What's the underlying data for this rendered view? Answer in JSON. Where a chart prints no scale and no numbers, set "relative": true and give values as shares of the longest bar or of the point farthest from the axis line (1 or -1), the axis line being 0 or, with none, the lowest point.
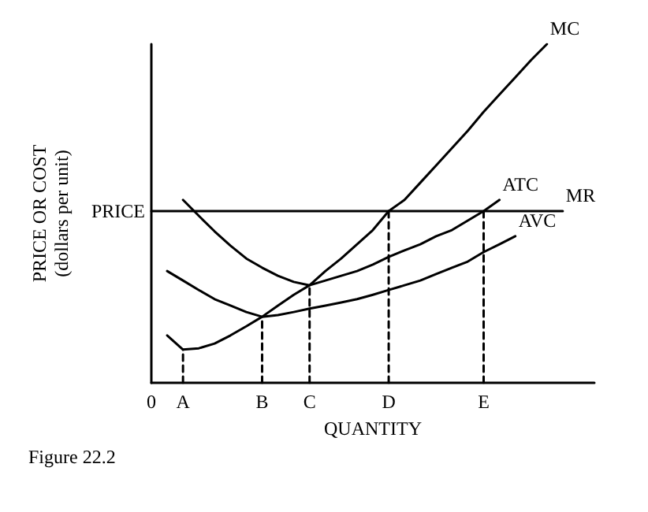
{
  "chart_data": {
    "type": "line",
    "relative": true,
    "xlabel": "QUANTITY",
    "ylabel": "PRICE OR COST\n(dollars per unit)",
    "categories": [
      "0",
      null,
      "A",
      null,
      null,
      null,
      null,
      "B",
      null,
      null,
      "C",
      null,
      null,
      null,
      null,
      "D",
      null,
      null,
      null,
      null,
      null,
      "E",
      null,
      null,
      null,
      null,
      null,
      null,
      null
    ],
    "marker": "none",
    "legend": false,
    "grid": false,
    "annotations": [
      "PRICE",
      "Figure 22.2"
    ],
    "series": [
      {
        "name": "MC",
        "color": "#000000",
        "values": [
          null,
          0.14,
          0.098,
          0.102,
          0.116,
          0.14,
          0.167,
          0.195,
          0.228,
          0.26,
          0.288,
          0.33,
          0.367,
          0.409,
          0.451,
          0.507,
          0.54,
          0.591,
          0.642,
          0.693,
          0.744,
          0.8,
          0.851,
          0.902,
          0.953,
          1,
          null,
          null,
          null
        ]
      },
      {
        "name": "ATC",
        "color": "#000000",
        "values": [
          null,
          null,
          0.54,
          0.493,
          0.447,
          0.405,
          0.367,
          0.34,
          0.316,
          0.298,
          0.288,
          0.302,
          0.316,
          0.33,
          0.349,
          0.372,
          0.391,
          0.409,
          0.433,
          0.451,
          0.479,
          0.507,
          0.54,
          null,
          null,
          null,
          null,
          null,
          null
        ]
      },
      {
        "name": "AVC",
        "color": "#000000",
        "values": [
          null,
          0.33,
          0.302,
          0.274,
          0.247,
          0.228,
          0.209,
          0.195,
          0.2,
          0.209,
          0.219,
          0.228,
          0.237,
          0.247,
          0.26,
          0.274,
          0.288,
          0.302,
          0.321,
          0.34,
          0.358,
          0.386,
          0.409,
          0.433,
          null,
          null,
          null,
          null,
          null
        ]
      },
      {
        "name": "MR",
        "color": "#000000",
        "values": [
          0.507,
          null,
          null,
          null,
          null,
          null,
          null,
          null,
          null,
          null,
          null,
          null,
          null,
          null,
          null,
          null,
          null,
          null,
          null,
          null,
          null,
          null,
          null,
          null,
          null,
          null,
          0.507,
          null,
          null
        ]
      },
      {
        "color": "#000000",
        "line_style": "dashed",
        "x": [
          "A",
          "A"
        ],
        "values": [
          0,
          0.098
        ]
      },
      {
        "color": "#000000",
        "line_style": "dashed",
        "x": [
          "B",
          "B"
        ],
        "values": [
          0,
          0.195
        ]
      },
      {
        "color": "#000000",
        "line_style": "dashed",
        "x": [
          "C",
          "C"
        ],
        "values": [
          0,
          0.288
        ]
      },
      {
        "color": "#000000",
        "line_style": "dashed",
        "x": [
          "D",
          "D"
        ],
        "values": [
          0,
          0.507
        ]
      },
      {
        "color": "#000000",
        "line_style": "dashed",
        "x": [
          "E",
          "E"
        ],
        "values": [
          0,
          0.507
        ]
      }
    ]
  }
}
